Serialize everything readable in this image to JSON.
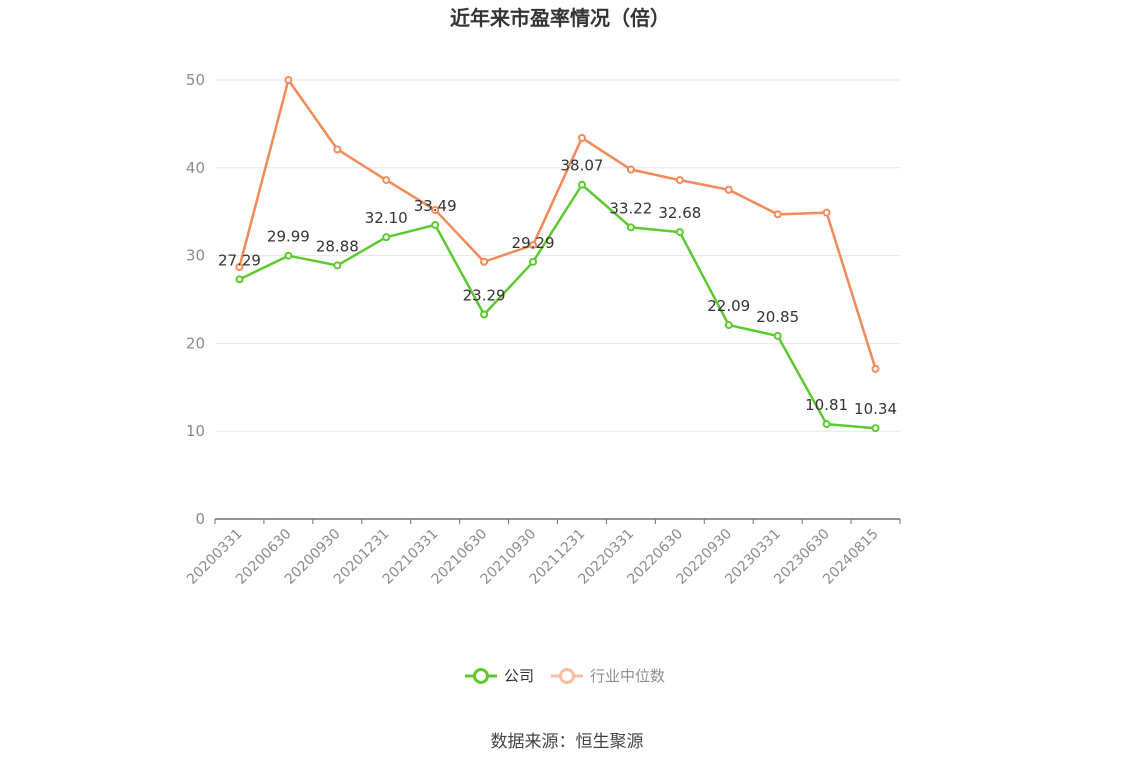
{
  "chart_data": {
    "type": "line",
    "title": "近年来市盈率情况（倍）",
    "categories": [
      "20200331",
      "20200630",
      "20200930",
      "20201231",
      "20210331",
      "20210630",
      "20210930",
      "20211231",
      "20220331",
      "20220630",
      "20220930",
      "20230331",
      "20230630",
      "20240815"
    ],
    "series": [
      {
        "name": "公司",
        "color": "#5cc92f",
        "values": [
          27.29,
          29.99,
          28.88,
          32.1,
          33.49,
          23.29,
          29.29,
          38.07,
          33.22,
          32.68,
          22.09,
          20.85,
          10.81,
          10.34
        ],
        "labels": [
          "27.29",
          "29.99",
          "28.88",
          "32.10",
          "33.49",
          "23.29",
          "29.29",
          "38.07",
          "33.22",
          "32.68",
          "22.09",
          "20.85",
          "10.81",
          "10.34"
        ]
      },
      {
        "name": "行业中位数",
        "color": "#f4895a",
        "values": [
          28.7,
          50.0,
          42.1,
          38.6,
          35.2,
          29.3,
          31.2,
          43.4,
          39.8,
          38.6,
          37.5,
          34.7,
          34.9,
          17.1
        ]
      }
    ],
    "yticks": [
      0,
      10,
      20,
      30,
      40,
      50
    ],
    "ylim": [
      0,
      50
    ],
    "grid": true,
    "legend_position": "bottom-center"
  },
  "source_text": "数据来源：恒生聚源"
}
